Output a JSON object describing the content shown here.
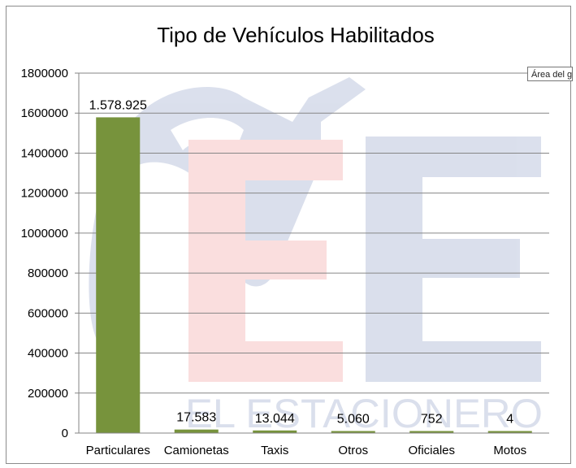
{
  "chart_data": {
    "type": "bar",
    "title": "Tipo de Vehículos Habilitados",
    "categories": [
      "Particulares",
      "Camionetas",
      "Taxis",
      "Otros",
      "Oficiales",
      "Motos"
    ],
    "values": [
      1578925,
      17583,
      13044,
      5060,
      752,
      4
    ],
    "data_labels": [
      "1.578.925",
      "17.583",
      "13.044",
      "5.060",
      "752",
      "4"
    ],
    "ylim": [
      0,
      1800000
    ],
    "yticks": [
      0,
      200000,
      400000,
      600000,
      800000,
      1000000,
      1200000,
      1400000,
      1600000,
      1800000
    ],
    "ytick_labels": [
      "0",
      "200000",
      "400000",
      "600000",
      "800000",
      "1000000",
      "1200000",
      "1400000",
      "1600000",
      "1800000"
    ],
    "grid": true,
    "bar_color": "#77933c",
    "legend": "none"
  },
  "watermark": {
    "text": "EL ESTACIONERO",
    "letters": "EE"
  },
  "tooltip": {
    "text": "Área del gráfico"
  }
}
